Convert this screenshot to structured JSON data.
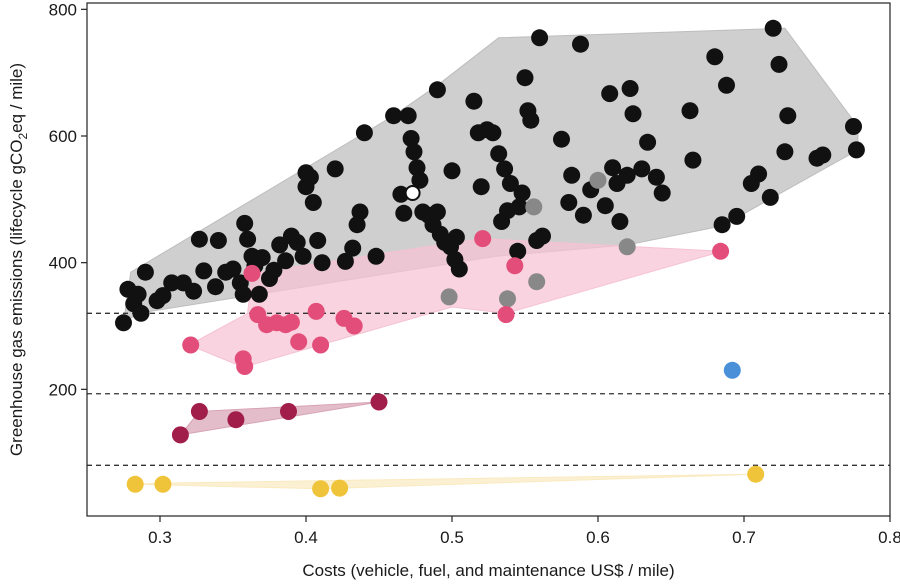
{
  "chart_data": {
    "type": "scatter",
    "title": "",
    "xlabel": "Costs (vehicle, fuel, and maintenance US$ / mile)",
    "ylabel_parts": [
      "Greenhouse gas emissions (lifecycle gCO",
      "2",
      "eq / mile)"
    ],
    "xlim": [
      0.25,
      0.8
    ],
    "ylim": [
      0,
      810
    ],
    "x_ticks": [
      0.3,
      0.4,
      0.5,
      0.6,
      0.7,
      0.8
    ],
    "x_tick_labels": [
      "0.3",
      "0.4",
      "0.5",
      "0.6",
      "0.7",
      "0.8"
    ],
    "y_ticks": [
      200,
      400,
      600,
      800
    ],
    "y_tick_labels": [
      "200",
      "400",
      "600",
      "800"
    ],
    "reference_lines": [
      320,
      193,
      80
    ],
    "grid": false,
    "series": [
      {
        "color": "#111111",
        "hull_color": "#bdbdbd",
        "hull": [
          [
            0.275,
            305
          ],
          [
            0.285,
            320
          ],
          [
            0.53,
            410
          ],
          [
            0.62,
            428
          ],
          [
            0.685,
            458
          ],
          [
            0.778,
            578
          ],
          [
            0.778,
            615
          ],
          [
            0.728,
            770
          ],
          [
            0.532,
            755
          ],
          [
            0.49,
            680
          ],
          [
            0.46,
            632
          ],
          [
            0.28,
            385
          ]
        ],
        "points": [
          [
            0.275,
            305
          ],
          [
            0.278,
            358
          ],
          [
            0.282,
            335
          ],
          [
            0.285,
            350
          ],
          [
            0.287,
            320
          ],
          [
            0.29,
            385
          ],
          [
            0.298,
            340
          ],
          [
            0.302,
            348
          ],
          [
            0.308,
            368
          ],
          [
            0.316,
            368
          ],
          [
            0.323,
            355
          ],
          [
            0.327,
            437
          ],
          [
            0.33,
            387
          ],
          [
            0.338,
            362
          ],
          [
            0.34,
            435
          ],
          [
            0.345,
            385
          ],
          [
            0.35,
            390
          ],
          [
            0.355,
            368
          ],
          [
            0.357,
            350
          ],
          [
            0.358,
            462
          ],
          [
            0.36,
            437
          ],
          [
            0.363,
            410
          ],
          [
            0.365,
            395
          ],
          [
            0.368,
            350
          ],
          [
            0.37,
            408
          ],
          [
            0.375,
            375
          ],
          [
            0.378,
            388
          ],
          [
            0.382,
            428
          ],
          [
            0.386,
            403
          ],
          [
            0.39,
            442
          ],
          [
            0.394,
            432
          ],
          [
            0.398,
            410
          ],
          [
            0.4,
            520
          ],
          [
            0.4,
            542
          ],
          [
            0.403,
            535
          ],
          [
            0.405,
            495
          ],
          [
            0.408,
            435
          ],
          [
            0.411,
            400
          ],
          [
            0.42,
            548
          ],
          [
            0.427,
            402
          ],
          [
            0.432,
            423
          ],
          [
            0.435,
            460
          ],
          [
            0.437,
            480
          ],
          [
            0.44,
            605
          ],
          [
            0.448,
            410
          ],
          [
            0.46,
            632
          ],
          [
            0.47,
            632
          ],
          [
            0.472,
            596
          ],
          [
            0.474,
            575
          ],
          [
            0.476,
            550
          ],
          [
            0.478,
            530
          ],
          [
            0.465,
            508
          ],
          [
            0.467,
            478
          ],
          [
            0.48,
            480
          ],
          [
            0.484,
            475
          ],
          [
            0.487,
            460
          ],
          [
            0.49,
            480
          ],
          [
            0.492,
            445
          ],
          [
            0.495,
            432
          ],
          [
            0.499,
            425
          ],
          [
            0.502,
            405
          ],
          [
            0.505,
            390
          ],
          [
            0.49,
            673
          ],
          [
            0.5,
            545
          ],
          [
            0.503,
            440
          ],
          [
            0.515,
            655
          ],
          [
            0.518,
            605
          ],
          [
            0.52,
            520
          ],
          [
            0.524,
            610
          ],
          [
            0.528,
            605
          ],
          [
            0.532,
            572
          ],
          [
            0.534,
            465
          ],
          [
            0.536,
            548
          ],
          [
            0.538,
            482
          ],
          [
            0.54,
            525
          ],
          [
            0.545,
            418
          ],
          [
            0.546,
            488
          ],
          [
            0.548,
            510
          ],
          [
            0.55,
            692
          ],
          [
            0.552,
            640
          ],
          [
            0.554,
            625
          ],
          [
            0.558,
            435
          ],
          [
            0.562,
            442
          ],
          [
            0.56,
            755
          ],
          [
            0.575,
            595
          ],
          [
            0.58,
            495
          ],
          [
            0.582,
            538
          ],
          [
            0.588,
            745
          ],
          [
            0.59,
            475
          ],
          [
            0.595,
            515
          ],
          [
            0.605,
            490
          ],
          [
            0.608,
            667
          ],
          [
            0.61,
            550
          ],
          [
            0.613,
            525
          ],
          [
            0.615,
            465
          ],
          [
            0.62,
            538
          ],
          [
            0.622,
            675
          ],
          [
            0.624,
            635
          ],
          [
            0.63,
            548
          ],
          [
            0.634,
            590
          ],
          [
            0.64,
            535
          ],
          [
            0.644,
            510
          ],
          [
            0.663,
            640
          ],
          [
            0.665,
            562
          ],
          [
            0.68,
            725
          ],
          [
            0.685,
            460
          ],
          [
            0.688,
            680
          ],
          [
            0.695,
            473
          ],
          [
            0.705,
            525
          ],
          [
            0.71,
            540
          ],
          [
            0.718,
            503
          ],
          [
            0.72,
            770
          ],
          [
            0.724,
            713
          ],
          [
            0.728,
            575
          ],
          [
            0.73,
            632
          ],
          [
            0.75,
            565
          ],
          [
            0.754,
            570
          ],
          [
            0.775,
            615
          ],
          [
            0.777,
            578
          ]
        ],
        "open_points": [
          [
            0.473,
            510
          ]
        ]
      },
      {
        "color": "#888888",
        "points": [
          [
            0.498,
            346
          ],
          [
            0.538,
            343
          ],
          [
            0.558,
            370
          ],
          [
            0.556,
            488
          ],
          [
            0.6,
            530
          ],
          [
            0.62,
            425
          ]
        ]
      },
      {
        "color": "#e34d7a",
        "hull_color": "#f6c2d2",
        "hull": [
          [
            0.32,
            270
          ],
          [
            0.357,
            235
          ],
          [
            0.5,
            330
          ],
          [
            0.537,
            320
          ],
          [
            0.685,
            418
          ],
          [
            0.52,
            438
          ],
          [
            0.363,
            383
          ],
          [
            0.36,
            320
          ]
        ],
        "points": [
          [
            0.321,
            270
          ],
          [
            0.357,
            248
          ],
          [
            0.358,
            236
          ],
          [
            0.363,
            383
          ],
          [
            0.367,
            318
          ],
          [
            0.373,
            302
          ],
          [
            0.38,
            305
          ],
          [
            0.386,
            302
          ],
          [
            0.39,
            306
          ],
          [
            0.395,
            275
          ],
          [
            0.407,
            323
          ],
          [
            0.41,
            270
          ],
          [
            0.426,
            312
          ],
          [
            0.433,
            300
          ],
          [
            0.521,
            438
          ],
          [
            0.537,
            318
          ],
          [
            0.543,
            395
          ],
          [
            0.684,
            418
          ]
        ]
      },
      {
        "color": "#a11d4a",
        "hull_color": "#d8a3b5",
        "hull": [
          [
            0.314,
            128
          ],
          [
            0.45,
            180
          ],
          [
            0.327,
            165
          ]
        ],
        "points": [
          [
            0.314,
            128
          ],
          [
            0.327,
            165
          ],
          [
            0.352,
            152
          ],
          [
            0.388,
            165
          ],
          [
            0.45,
            180
          ]
        ]
      },
      {
        "color": "#4a90d9",
        "points": [
          [
            0.692,
            230
          ]
        ]
      },
      {
        "color": "#f0c43a",
        "hull_color": "#f9eac0",
        "hull": [
          [
            0.283,
            50
          ],
          [
            0.41,
            43
          ],
          [
            0.708,
            66
          ],
          [
            0.302,
            52
          ]
        ],
        "points": [
          [
            0.283,
            50
          ],
          [
            0.302,
            50
          ],
          [
            0.41,
            43
          ],
          [
            0.423,
            44
          ],
          [
            0.708,
            66
          ]
        ]
      }
    ]
  }
}
